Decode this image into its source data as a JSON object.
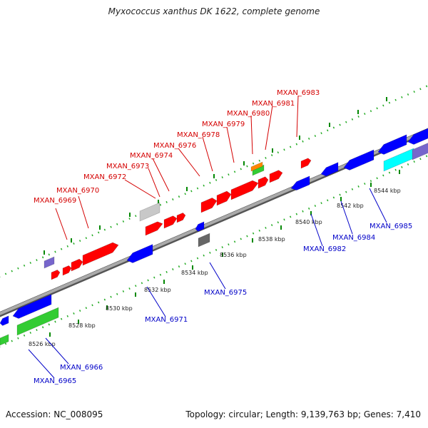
{
  "title": "Myxococcus xanthus DK 1622, complete genome",
  "footer": {
    "accession": "Accession: NC_008095",
    "summary": "Topology: circular; Length: 9,139,763 bp; Genes: 7,410"
  },
  "colors": {
    "forward_gene": "#ff0000",
    "reverse_gene": "#0000ff",
    "forward_label": "#d40000",
    "reverse_label": "#0000c8",
    "rna_gene": "#33cc33",
    "cyan_gene": "#00ffff",
    "purple_gene": "#7766cc",
    "grey_gene": "#c8c8c8",
    "dark_gene": "#666666",
    "orange_gene": "#ff8800",
    "backbone": "#888888",
    "forward_ruler": "#22aa22",
    "reverse_ruler": "#008800"
  },
  "ruler_ticks": [
    "8526 kbp",
    "8528 kbp",
    "8530 kbp",
    "8532 kbp",
    "8534 kbp",
    "8536 kbp",
    "8538 kbp",
    "8540 kbp",
    "8542 kbp",
    "8544 kbp"
  ],
  "labels_top": [
    "MXAN_6969",
    "MXAN_6970",
    "MXAN_6972",
    "MXAN_6973",
    "MXAN_6974",
    "MXAN_6976",
    "MXAN_6978",
    "MXAN_6979",
    "MXAN_6980",
    "MXAN_6981",
    "MXAN_6983"
  ],
  "labels_bottom": [
    "MXAN_6965",
    "MXAN_6966",
    "MXAN_6971",
    "MXAN_6975",
    "MXAN_6982",
    "MXAN_6984",
    "MXAN_6985"
  ]
}
